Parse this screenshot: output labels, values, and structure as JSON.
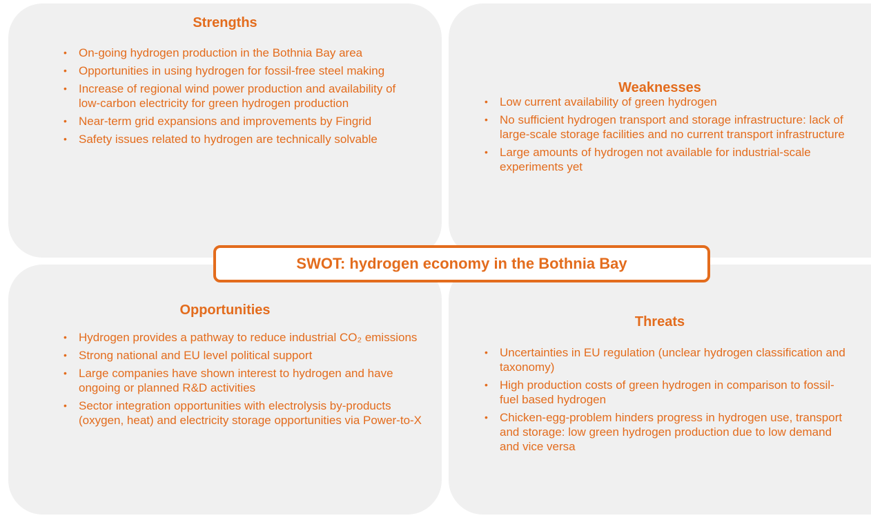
{
  "title": "SWOT: hydrogen economy in the Bothnia Bay",
  "quadrants": [
    {
      "heading": "Strengths",
      "items": [
        "On-going hydrogen production in the Bothnia Bay area",
        "Opportunities in using hydrogen for fossil-free steel making",
        "Increase of regional wind power production and availability of low-carbon electricity for green hydrogen production",
        "Near-term grid expansions and improvements by Fingrid",
        "Safety issues related to hydrogen are technically solvable"
      ]
    },
    {
      "heading": "Weaknesses",
      "items": [
        "Low current availability of green hydrogen",
        "No sufficient hydrogen transport and storage infrastructure: lack of large-scale storage facilities and no current transport infrastructure",
        "Large amounts of hydrogen not available for industrial-scale experiments yet"
      ]
    },
    {
      "heading": "Opportunities",
      "items": [
        "Hydrogen provides a pathway to reduce industrial CO₂ emissions",
        "Strong national and EU level political support",
        "Large companies have shown interest to hydrogen and have ongoing or planned R&D activities",
        "Sector integration opportunities with electrolysis by-products (oxygen, heat) and electricity storage opportunities via Power-to-X"
      ]
    },
    {
      "heading": "Threats",
      "items": [
        "Uncertainties in EU regulation (unclear hydrogen classification and taxonomy)",
        "High production costs of green hydrogen in comparison to fossil-fuel based hydrogen",
        "Chicken-egg-problem hinders progress in hydrogen use, transport and storage: low green hydrogen production due to low demand and vice versa"
      ]
    }
  ]
}
